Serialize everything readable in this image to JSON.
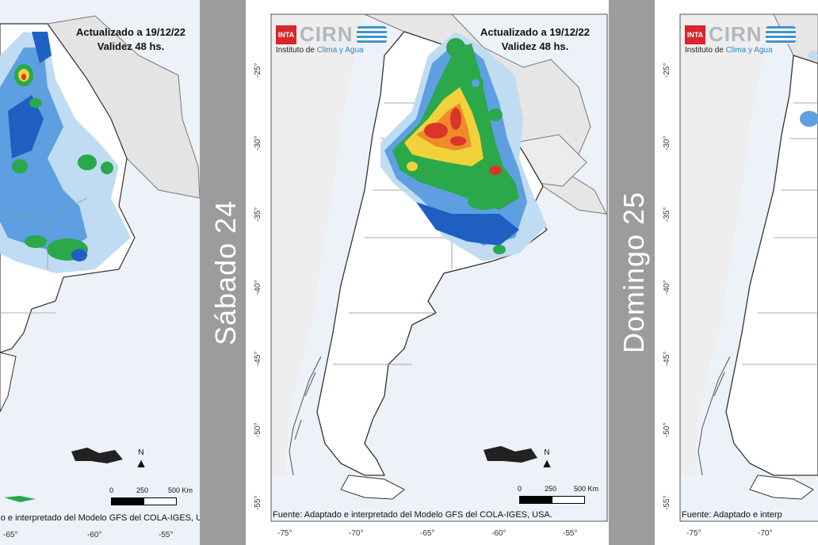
{
  "panels": [
    {
      "stamp_line1": "Actualizado a 19/12/22",
      "stamp_line2": "Validez 48 hs.",
      "source": "Fuente: Adaptado e interpretado del Modelo GFS del COLA-IGES, USA.",
      "lon_ticks": [
        "-65°",
        "-60°",
        "-55°"
      ],
      "lat_ticks": [],
      "scale_labels": [
        "0",
        "250",
        "500 Km"
      ],
      "north": "N"
    },
    {
      "logo_inta": "INTA",
      "logo_cirn": "CIRN",
      "institute_prefix": "Instituto de ",
      "institute_highlight": "Clima y Agua",
      "stamp_line1": "Actualizado a 19/12/22",
      "stamp_line2": "Validez 48 hs.",
      "source": "Fuente: Adaptado e interpretado del Modelo GFS del COLA-IGES, USA.",
      "lon_ticks": [
        "-75°",
        "-70°",
        "-65°",
        "-60°",
        "-55°"
      ],
      "lat_ticks": [
        "-25°",
        "-30°",
        "-35°",
        "-40°",
        "-45°",
        "-50°",
        "-55°"
      ],
      "scale_labels": [
        "0",
        "250",
        "500 Km"
      ],
      "north": "N"
    },
    {
      "logo_inta": "INTA",
      "logo_cirn": "CIRN",
      "institute_prefix": "Instituto de ",
      "institute_highlight": "Clima y Agua",
      "source": "Fuente: Adaptado e interp",
      "lon_ticks": [
        "-75°",
        "-70°"
      ],
      "lat_ticks": [
        "-25°",
        "-30°",
        "-35°",
        "-40°",
        "-45°",
        "-50°",
        "-55°"
      ]
    }
  ],
  "day_labels": {
    "left": "Sábado 24",
    "right": "Domingo 25"
  },
  "colors": {
    "light_blue": "#bfdcf3",
    "blue": "#5d9fe0",
    "dark_blue": "#1f5fc2",
    "green": "#2aa84a",
    "yellow": "#f2d23a",
    "orange": "#f08a2a",
    "red": "#d9362a",
    "sea": "#edf1f8"
  }
}
